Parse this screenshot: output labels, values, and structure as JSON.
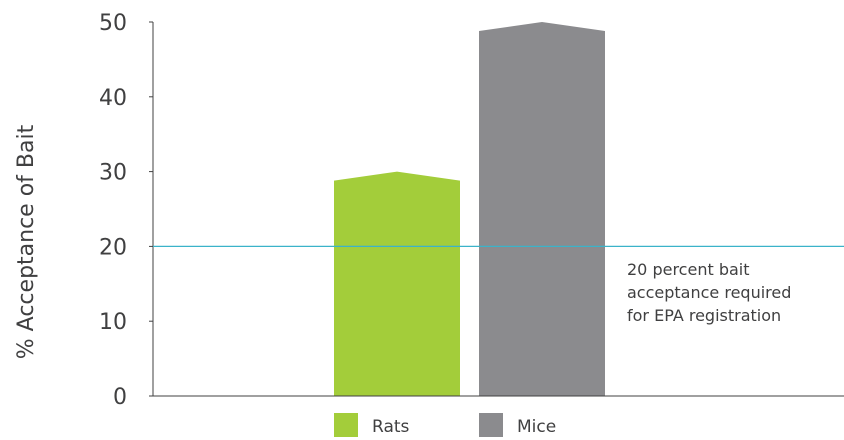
{
  "chart_data": {
    "type": "bar",
    "categories": [
      "Rats",
      "Mice"
    ],
    "values": [
      30,
      50
    ],
    "ylabel": "% Acceptance of Bait",
    "xlabel": "",
    "ylim": [
      0,
      50
    ],
    "yticks": [
      "0",
      "10",
      "20",
      "30",
      "40",
      "50"
    ],
    "colors": {
      "Rats": "#a3cd3a",
      "Mice": "#8b8b8e"
    },
    "reference_line": {
      "value": 20,
      "color": "#3bb3c9",
      "annotation": [
        "20 percent bait",
        "acceptance required",
        "for EPA registration"
      ]
    },
    "legend": [
      "Rats",
      "Mice"
    ],
    "legend_position": "bottom",
    "grid": false
  }
}
